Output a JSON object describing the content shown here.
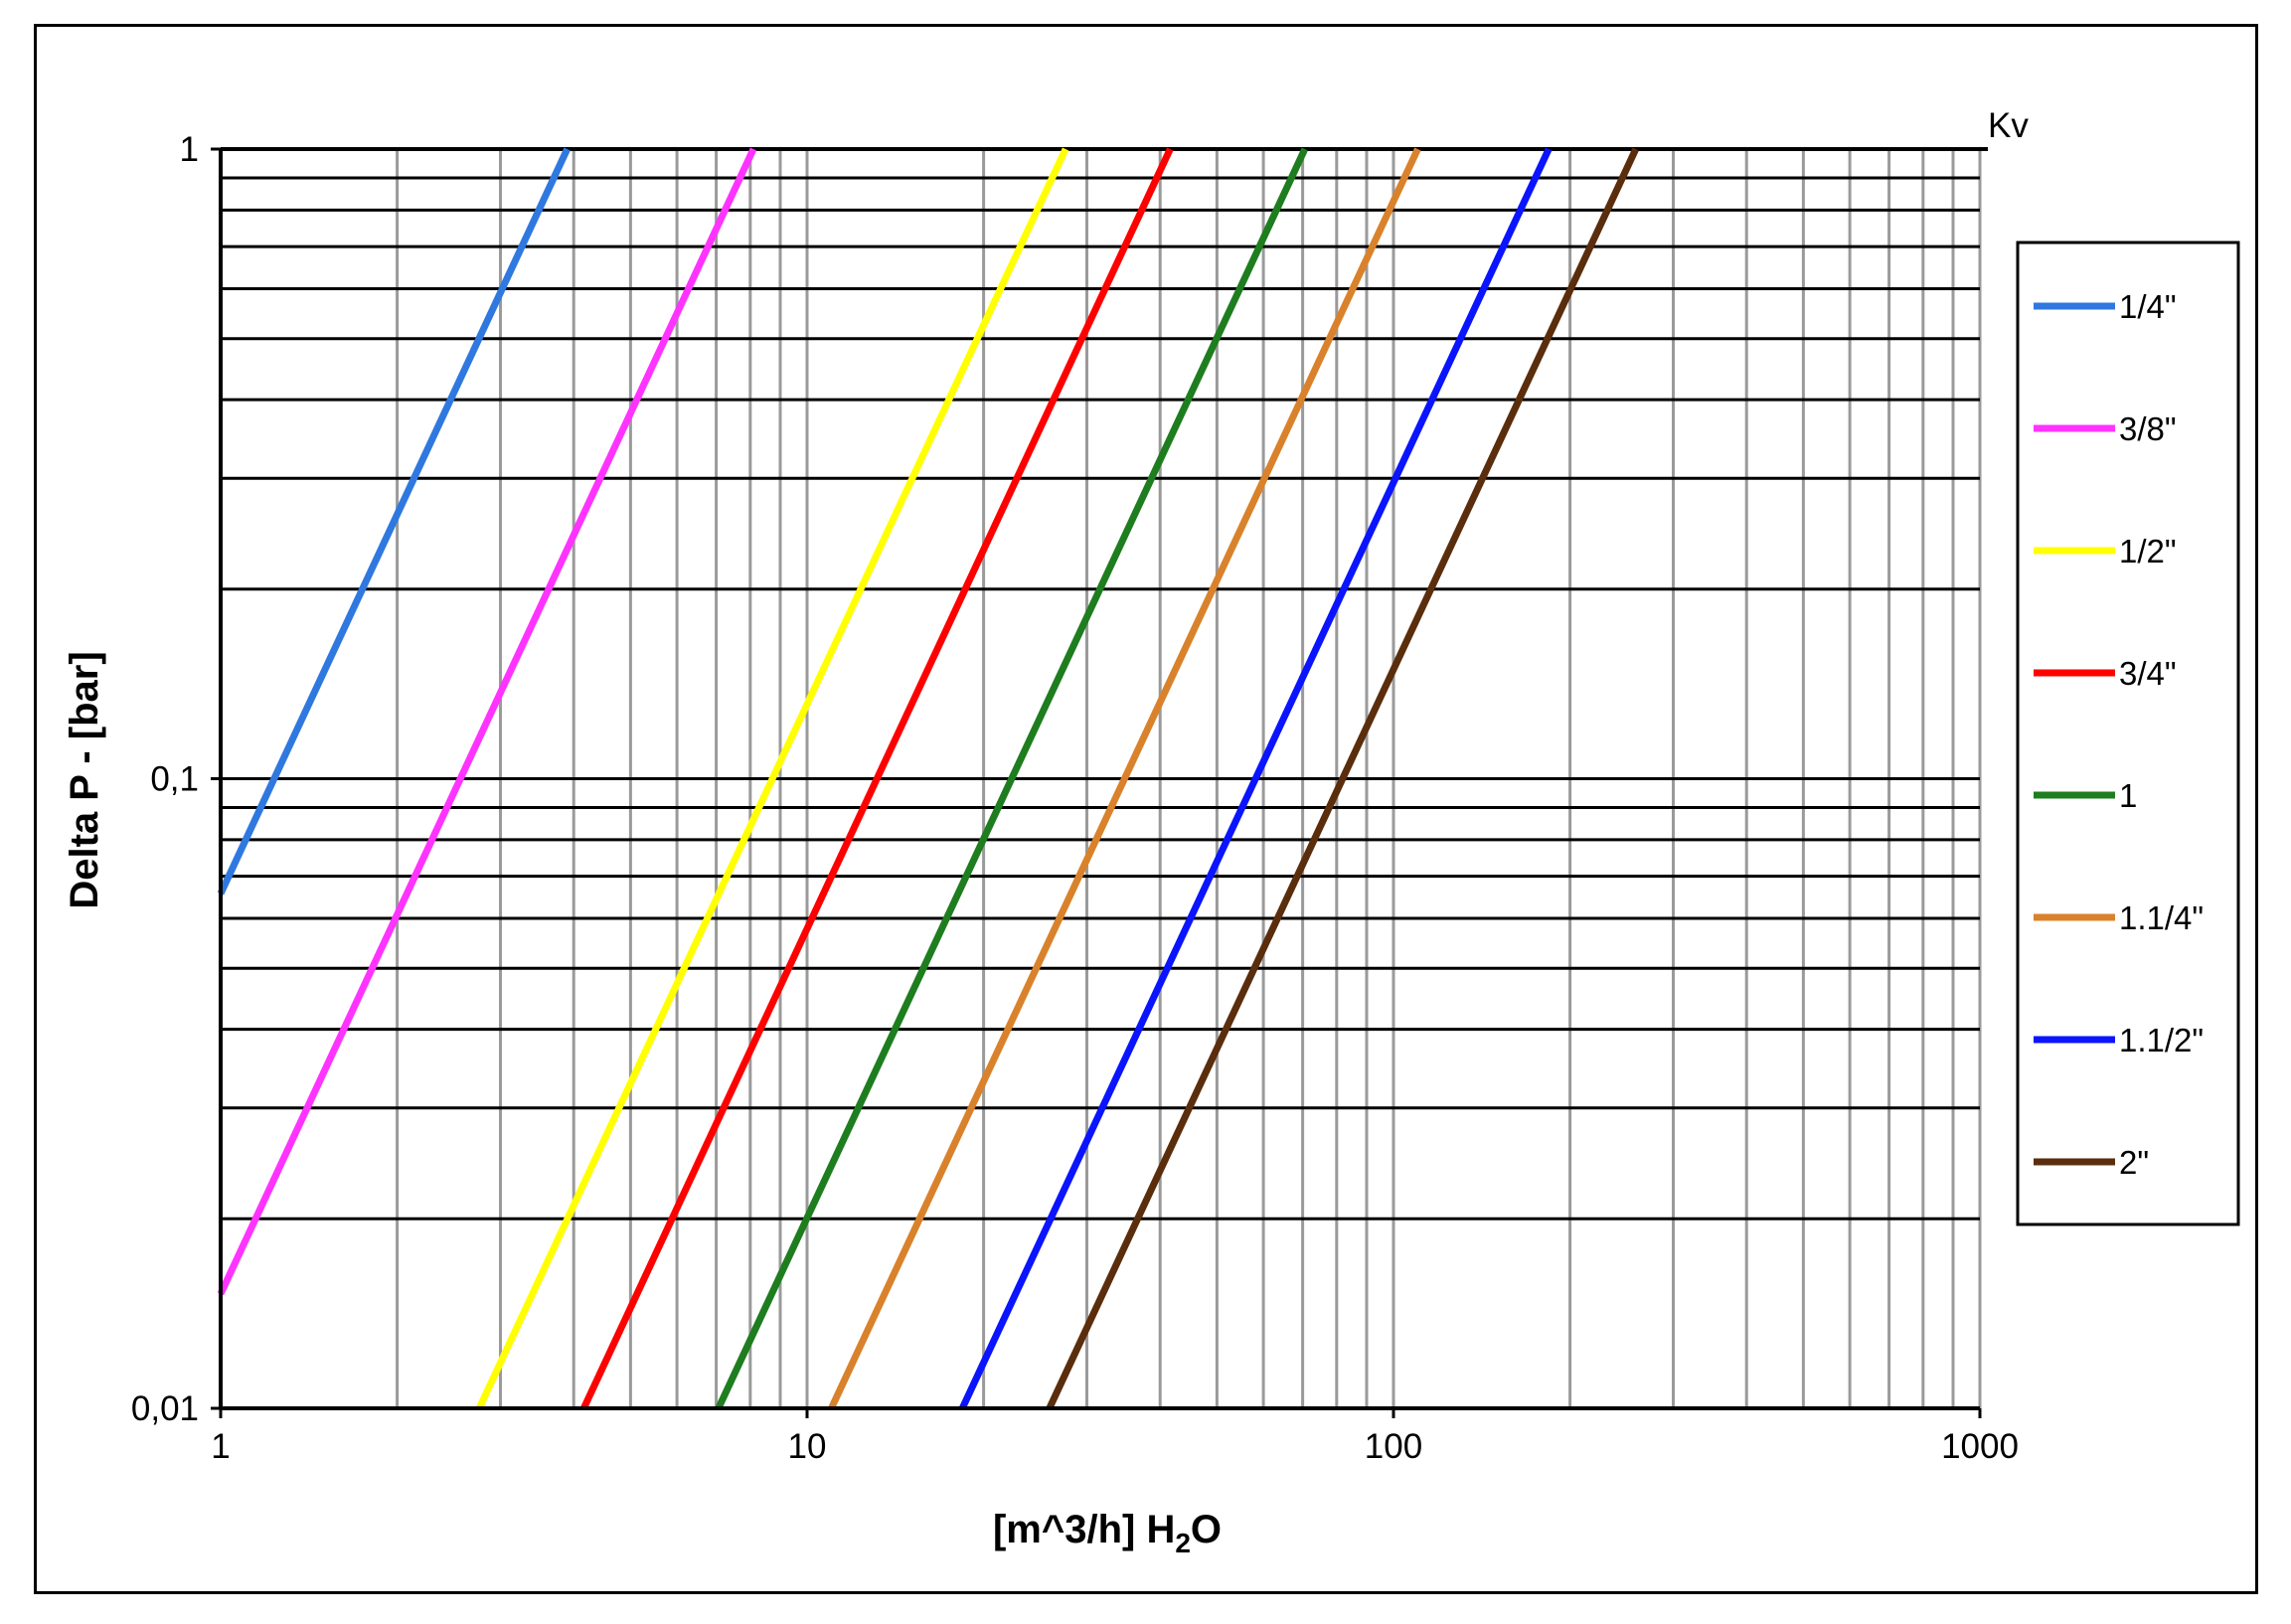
{
  "chart_data": {
    "type": "line",
    "title": "",
    "xlabel": "[m^3/h] H",
    "xlabel_sub": "2",
    "xlabel_tail": "O",
    "ylabel": "Delta P - [bar]",
    "corner_label": "Kv",
    "x_scale": "log",
    "y_scale": "log",
    "xlim": [
      1,
      1000
    ],
    "ylim": [
      0.01,
      1
    ],
    "x_ticks": [
      "1",
      "10",
      "100",
      "1000"
    ],
    "y_ticks": [
      "0,01",
      "0,1",
      "1"
    ],
    "grid": "major and minor (log)",
    "legend_position": "right",
    "series": [
      {
        "name": "1/4\"",
        "kv": 3.9,
        "color": "#2f78e0",
        "x": [
          1,
          3.9
        ],
        "y": [
          0.0657,
          1
        ]
      },
      {
        "name": "3/8\"",
        "kv": 8.1,
        "color": "#ff33ff",
        "x": [
          1,
          8.1
        ],
        "y": [
          0.0152,
          1
        ]
      },
      {
        "name": "1/2\"",
        "kv": 27.6,
        "color": "#ffff00",
        "x": [
          2.76,
          27.6
        ],
        "y": [
          0.01,
          1
        ]
      },
      {
        "name": "3/4\"",
        "kv": 41.6,
        "color": "#ff0000",
        "x": [
          4.16,
          41.6
        ],
        "y": [
          0.01,
          1
        ]
      },
      {
        "name": "1",
        "kv": 70.6,
        "color": "#1e7d1e",
        "x": [
          7.06,
          70.6
        ],
        "y": [
          0.01,
          1
        ]
      },
      {
        "name": "1.1/4\"",
        "kv": 110,
        "color": "#d9822b",
        "x": [
          11,
          110
        ],
        "y": [
          0.01,
          1
        ]
      },
      {
        "name": "1.1/2\"",
        "kv": 184,
        "color": "#0a14ff",
        "x": [
          18.4,
          184
        ],
        "y": [
          0.01,
          1
        ]
      },
      {
        "name": "2\"",
        "kv": 259,
        "color": "#5a2d0c",
        "x": [
          25.9,
          259
        ],
        "y": [
          0.01,
          1
        ]
      }
    ]
  }
}
